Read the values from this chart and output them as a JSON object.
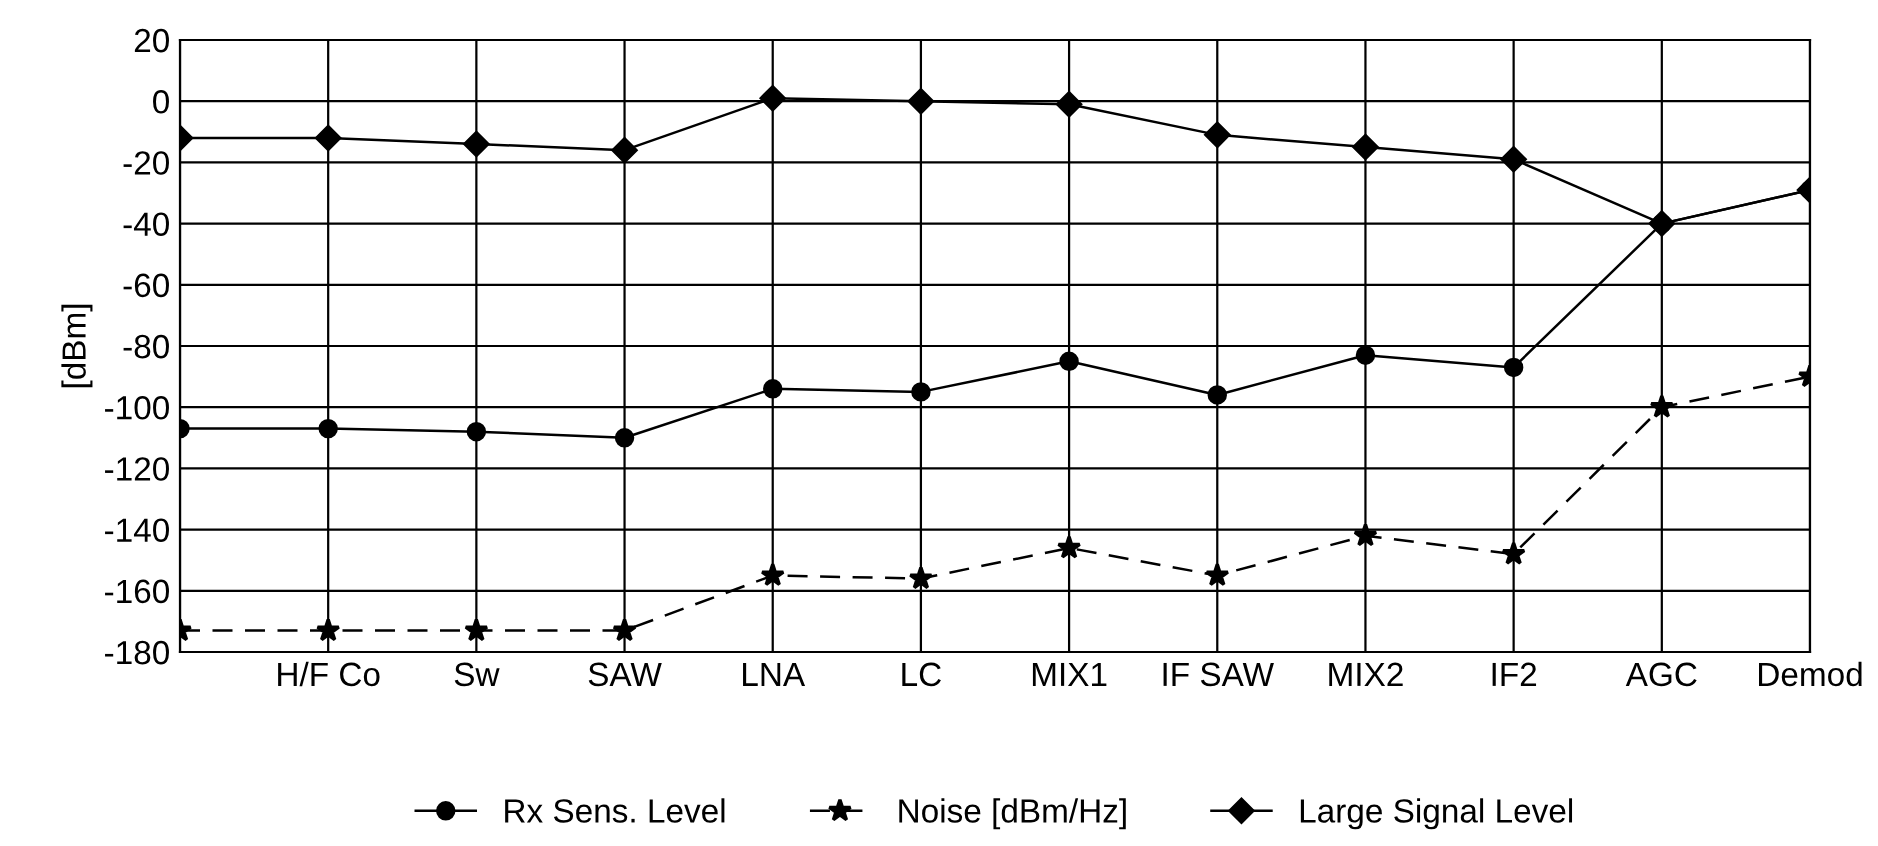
{
  "chart_data": {
    "type": "line",
    "ylabel": "[dBm]",
    "categories": [
      null,
      "H/F Co",
      "Sw",
      "SAW",
      "LNA",
      "LC",
      "MIX1",
      "IF SAW",
      "MIX2",
      "IF2",
      "AGC",
      "Demod"
    ],
    "series": [
      {
        "name": "Rx Sens. Level",
        "color": "#000000",
        "marker": "circle",
        "line_style": "solid",
        "values": [
          -107,
          -107,
          -108,
          -110,
          -94,
          -95,
          -85,
          -96,
          -83,
          -87,
          -40,
          -29
        ]
      },
      {
        "name": "Noise [dBm/Hz]",
        "color": "#000000",
        "marker": "star",
        "line_style": "dashed",
        "values": [
          -173,
          -173,
          -173,
          -173,
          -155,
          -156,
          -146,
          -155,
          -142,
          -148,
          -100,
          -90
        ]
      },
      {
        "name": "Large Signal Level",
        "color": "#000000",
        "marker": "diamond",
        "line_style": "solid",
        "values": [
          -12,
          -12,
          -14,
          -16,
          1,
          0,
          -1,
          -11,
          -15,
          -19,
          -40,
          -29
        ]
      }
    ],
    "ylim": [
      -180,
      20
    ],
    "yticks": [
      -180,
      -160,
      -140,
      -120,
      -100,
      -80,
      -60,
      -40,
      -20,
      0,
      20
    ],
    "grid": true,
    "legend": "bottom"
  }
}
